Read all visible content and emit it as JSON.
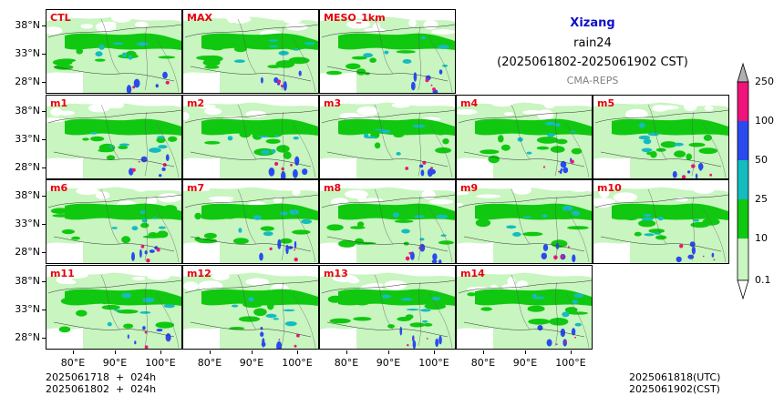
{
  "title": {
    "region": "Xizang",
    "variable": "rain24",
    "period": "(2025061802-2025061902 CST)",
    "source": "CMA-REPS"
  },
  "panels": [
    "CTL",
    "MAX",
    "MESO_1km",
    "m1",
    "m2",
    "m3",
    "m4",
    "m5",
    "m6",
    "m7",
    "m8",
    "m9",
    "m10",
    "m11",
    "m12",
    "m13",
    "m14"
  ],
  "axes": {
    "lat_labels": [
      "38°N",
      "33°N",
      "28°N"
    ],
    "lon_labels": [
      "80°E",
      "90°E",
      "100°E"
    ]
  },
  "colorbar": {
    "labels": [
      "250",
      "100",
      "50",
      "25",
      "10",
      "0.1"
    ],
    "colors": [
      "#f0137a",
      "#2a4af0",
      "#14bcc0",
      "#10c810",
      "#c8f5c0"
    ],
    "over_color": "#b0b0b0",
    "under_color": "#ffffff"
  },
  "footer": {
    "init_utc": "2025061718  +  024h",
    "init_cst": "2025061802  +  024h",
    "valid_utc": "2025061818(UTC)",
    "valid_cst": "2025061902(CST)"
  }
}
